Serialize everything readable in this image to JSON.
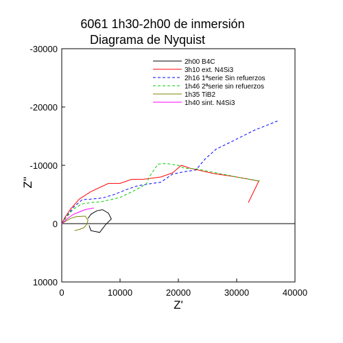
{
  "chart_data": {
    "type": "line",
    "title": "6061 1h30-2h00 de inmersión",
    "subtitle": "Diagrama de Nyquist",
    "xlabel": "Z'",
    "ylabel": "Z''",
    "xlim": [
      0,
      40000
    ],
    "ylim": [
      10000,
      -30000
    ],
    "x_ticks": [
      "0",
      "10000",
      "20000",
      "30000",
      "40000"
    ],
    "y_ticks": [
      "-30000",
      "-20000",
      "-10000",
      "0",
      "10000"
    ],
    "zero_line": true,
    "grid": false,
    "legend_position": "top-right",
    "series": [
      {
        "name": "2h00 B4C",
        "color": "#000000",
        "dash": "solid",
        "points": [
          [
            4500,
            -900
          ],
          [
            5000,
            -1600
          ],
          [
            6000,
            -2200
          ],
          [
            7000,
            -2400
          ],
          [
            8000,
            -1800
          ],
          [
            8500,
            -800
          ],
          [
            7500,
            200
          ],
          [
            6500,
            1500
          ],
          [
            5000,
            1200
          ],
          [
            4700,
            300
          ]
        ]
      },
      {
        "name": "3h10 ext. N4Si3",
        "color": "#ff0000",
        "dash": "solid",
        "points": [
          [
            0,
            0
          ],
          [
            500,
            -1000
          ],
          [
            1500,
            -2500
          ],
          [
            3000,
            -4200
          ],
          [
            5000,
            -5500
          ],
          [
            8000,
            -6900
          ],
          [
            9000,
            -6900
          ],
          [
            10000,
            -6900
          ],
          [
            12000,
            -7600
          ],
          [
            14000,
            -7600
          ],
          [
            17000,
            -8000
          ],
          [
            19000,
            -8700
          ],
          [
            20500,
            -10000
          ],
          [
            22000,
            -9500
          ],
          [
            26000,
            -8600
          ],
          [
            30000,
            -8000
          ],
          [
            33800,
            -7300
          ],
          [
            32000,
            -3600
          ]
        ]
      },
      {
        "name": "2h16 1ªserie Sin refuerzos",
        "color": "#0000ff",
        "dash": "dashed",
        "points": [
          [
            0,
            0
          ],
          [
            800,
            -1200
          ],
          [
            2000,
            -2800
          ],
          [
            3500,
            -4100
          ],
          [
            5000,
            -4200
          ],
          [
            7000,
            -4400
          ],
          [
            9000,
            -5000
          ],
          [
            11000,
            -5800
          ],
          [
            13000,
            -6500
          ],
          [
            15500,
            -6900
          ],
          [
            17000,
            -7100
          ],
          [
            19000,
            -8500
          ],
          [
            21000,
            -8900
          ],
          [
            23000,
            -9200
          ],
          [
            24500,
            -11000
          ],
          [
            26500,
            -12800
          ],
          [
            29000,
            -14000
          ],
          [
            31000,
            -15000
          ],
          [
            33000,
            -16000
          ],
          [
            35000,
            -16800
          ],
          [
            37000,
            -17600
          ]
        ]
      },
      {
        "name": "1h46 2ªserie sin refuerzos",
        "color": "#00cc00",
        "dash": "dashed",
        "points": [
          [
            0,
            0
          ],
          [
            800,
            -1100
          ],
          [
            2000,
            -2500
          ],
          [
            3500,
            -3400
          ],
          [
            5000,
            -3600
          ],
          [
            7000,
            -3800
          ],
          [
            10000,
            -4500
          ],
          [
            12500,
            -5700
          ],
          [
            14500,
            -6800
          ],
          [
            15000,
            -8000
          ],
          [
            16500,
            -10200
          ],
          [
            18000,
            -10300
          ],
          [
            20000,
            -10000
          ],
          [
            21000,
            -9500
          ],
          [
            23000,
            -9400
          ],
          [
            27000,
            -8600
          ],
          [
            31000,
            -7800
          ],
          [
            34000,
            -7300
          ]
        ]
      },
      {
        "name": "1h35 TiB2",
        "color": "#808000",
        "dash": "solid",
        "points": [
          [
            0,
            0
          ],
          [
            800,
            -500
          ],
          [
            1500,
            -900
          ],
          [
            2500,
            -1200
          ],
          [
            4000,
            -1300
          ],
          [
            4500,
            -600
          ],
          [
            4300,
            100
          ],
          [
            3800,
            700
          ],
          [
            3000,
            1000
          ],
          [
            2200,
            1200
          ]
        ]
      },
      {
        "name": "1h40 sint. N4Si3",
        "color": "#ff00ff",
        "dash": "solid",
        "points": [
          [
            0,
            0
          ],
          [
            1000,
            -900
          ],
          [
            2000,
            -1600
          ],
          [
            3000,
            -2000
          ],
          [
            4000,
            -2400
          ],
          [
            5500,
            -2700
          ]
        ]
      }
    ]
  }
}
